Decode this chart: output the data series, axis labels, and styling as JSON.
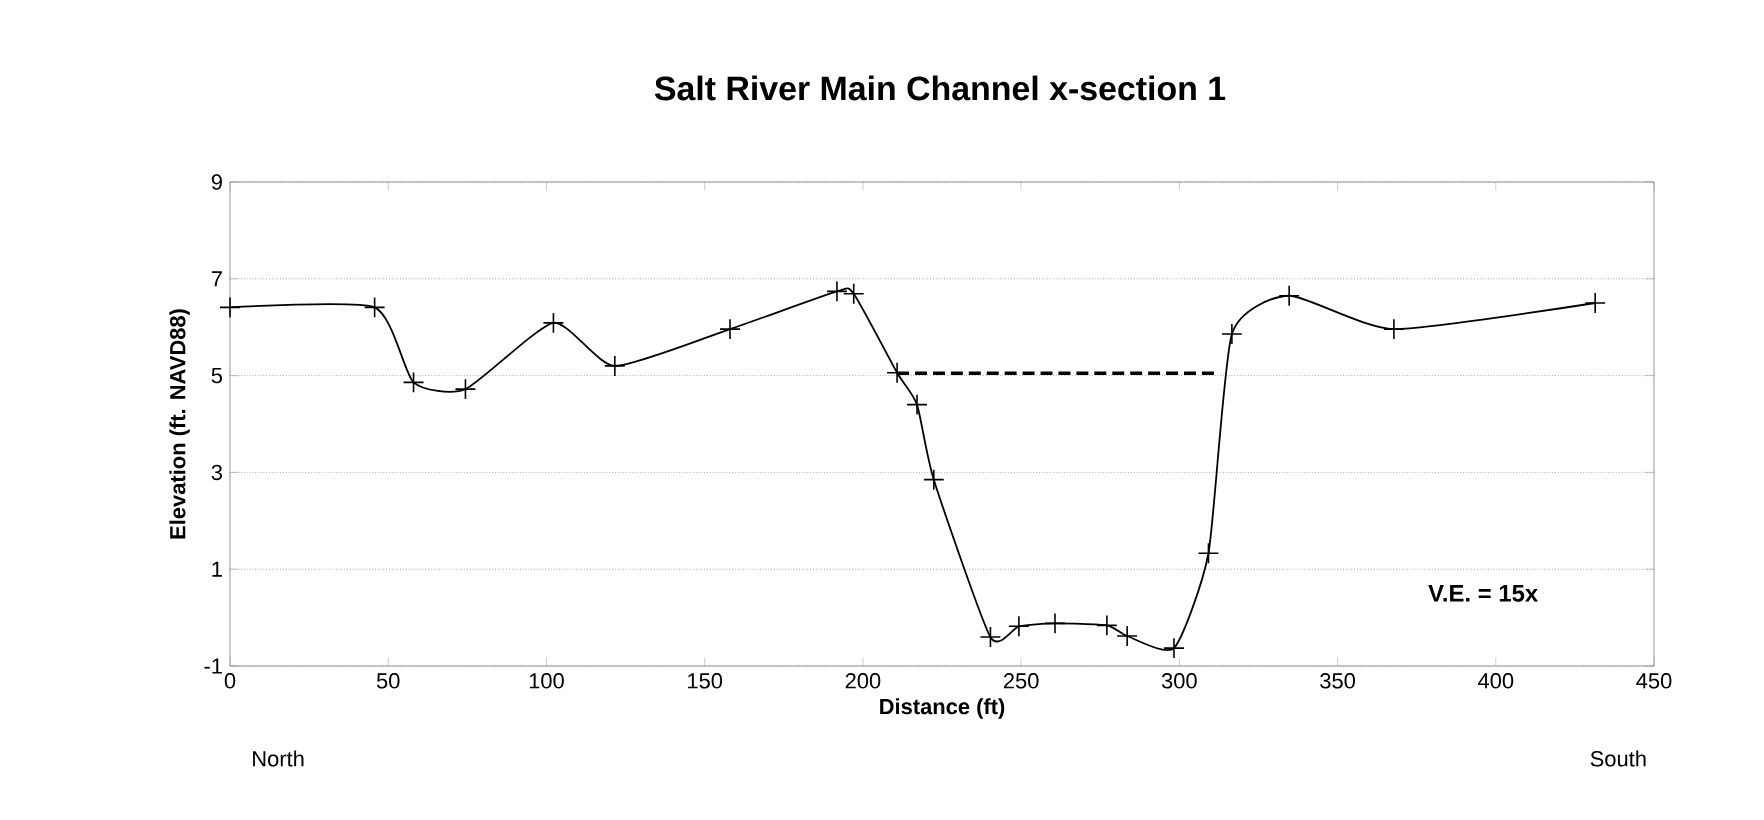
{
  "chart_data": {
    "type": "line",
    "title": "Salt River Main Channel x-section 1",
    "xlabel": "Distance (ft)",
    "ylabel": "Elevation (ft. NAVD88)",
    "xlim": [
      0,
      450
    ],
    "xticks": [
      0,
      50,
      100,
      150,
      200,
      250,
      300,
      350,
      400,
      450
    ],
    "ylim": [
      -1,
      9
    ],
    "yticks": [
      -1,
      1,
      3,
      5,
      7,
      9
    ],
    "grid": "y",
    "series": [
      {
        "color": "#000000",
        "marker": "cross",
        "line_style": "solid",
        "x": [
          0,
          45.7,
          58,
          74.4,
          102.2,
          121.6,
          158,
          191.8,
          197.1,
          210.8,
          217.1,
          222.4,
          240.3,
          249.3,
          260.7,
          277.1,
          283.5,
          298.3,
          309.2,
          316.6,
          334.7,
          367.8,
          431.4
        ],
        "values": [
          6.41,
          6.41,
          4.86,
          4.72,
          6.09,
          5.2,
          5.96,
          6.74,
          6.69,
          5.06,
          4.4,
          2.85,
          -0.4,
          -0.18,
          -0.12,
          -0.16,
          -0.38,
          -0.63,
          1.33,
          5.86,
          6.65,
          5.96,
          6.5
        ]
      },
      {
        "color": "#000000",
        "marker": "none",
        "line_style": "dashed",
        "x": [
          210.8,
          312
        ],
        "values": [
          5.05,
          5.05
        ]
      }
    ],
    "annotations": [
      "North",
      "South",
      "V.E. = 15x"
    ]
  }
}
